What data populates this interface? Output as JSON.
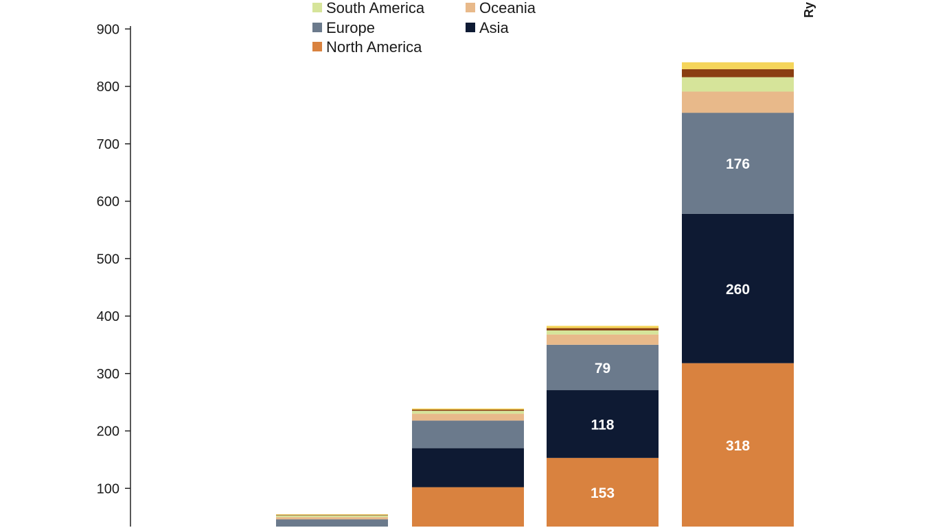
{
  "chart_data": {
    "type": "bar",
    "stacked": true,
    "ylim": [
      0,
      900
    ],
    "yticks": [
      100,
      200,
      300,
      400,
      500,
      600,
      700,
      800,
      900
    ],
    "grid": false,
    "legend_position": "top-center",
    "corner_text": "Ry",
    "categories": [
      "",
      "",
      "",
      "",
      ""
    ],
    "series": [
      {
        "name": "North America",
        "color": "#D9823F",
        "values": [
          2,
          6,
          102,
          153,
          318
        ],
        "labels": [
          "",
          "",
          "",
          "153",
          "318"
        ]
      },
      {
        "name": "Asia",
        "color": "#0E1A33",
        "values": [
          1,
          24,
          68,
          118,
          260
        ],
        "labels": [
          "",
          "",
          "",
          "118",
          "260"
        ]
      },
      {
        "name": "Europe",
        "color": "#6B7A8C",
        "values": [
          1,
          16,
          48,
          79,
          176
        ],
        "labels": [
          "",
          "",
          "",
          "79",
          "176"
        ]
      },
      {
        "name": "Oceania",
        "color": "#E8B98A",
        "values": [
          0,
          4,
          12,
          18,
          37
        ],
        "labels": [
          "",
          "",
          "",
          "",
          ""
        ]
      },
      {
        "name": "South America",
        "color": "#D6E49A",
        "values": [
          0,
          3,
          5,
          7,
          25
        ],
        "labels": [
          "",
          "",
          "",
          "",
          ""
        ]
      },
      {
        "name": "",
        "color": "#8A3E12",
        "values": [
          0,
          1,
          2,
          4,
          14
        ],
        "labels": [
          "",
          "",
          "",
          "",
          ""
        ]
      },
      {
        "name": "",
        "color": "#F5D55A",
        "values": [
          0,
          1,
          2,
          4,
          12
        ],
        "labels": [
          "",
          "",
          "",
          "",
          ""
        ]
      }
    ],
    "legend_order": [
      "South America",
      "Oceania",
      "Europe",
      "Asia",
      "North America"
    ]
  }
}
